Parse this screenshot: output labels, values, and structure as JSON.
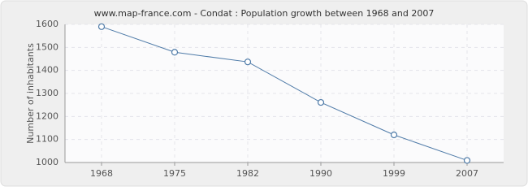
{
  "chart_data": {
    "type": "line",
    "title": "www.map-france.com - Condat : Population growth between 1968 and 2007",
    "y_label": "Number of inhabitants",
    "categories": [
      "1968",
      "1975",
      "1982",
      "1990",
      "1999",
      "2007"
    ],
    "series": [
      {
        "name": "Population",
        "color": "#4f7ba8",
        "values": [
          1590,
          1479,
          1437,
          1261,
          1120,
          1009
        ]
      }
    ],
    "ylim": [
      1000,
      1600
    ],
    "yticks": [
      1000,
      1100,
      1200,
      1300,
      1400,
      1500,
      1600
    ],
    "grid": true
  }
}
